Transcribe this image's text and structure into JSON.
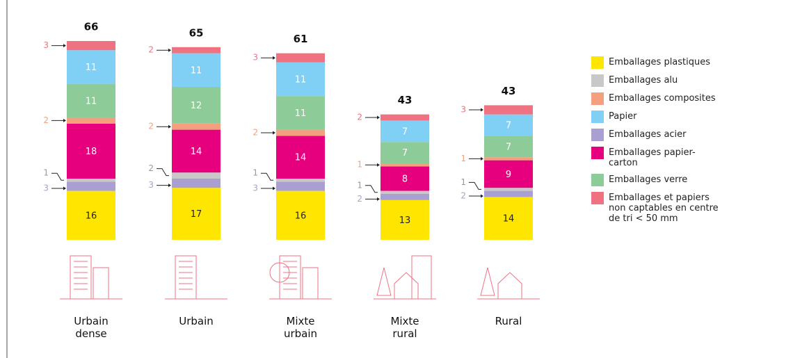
{
  "chart_data": {
    "type": "stacked-bar",
    "categories": [
      "Urbain dense",
      "Urbain",
      "Mixte urbain",
      "Mixte rural",
      "Rural"
    ],
    "totals": [
      66,
      65,
      61,
      43,
      43
    ],
    "ylim": [
      0,
      70
    ],
    "series": [
      {
        "name": "Emballages plastiques",
        "color": "#ffe600",
        "values": [
          16,
          17,
          16,
          13,
          14
        ]
      },
      {
        "name": "Emballages acier",
        "color": "#a99fd1",
        "values": [
          3,
          3,
          3,
          2,
          2
        ]
      },
      {
        "name": "Emballages alu",
        "color": "#c8c8c8",
        "values": [
          1,
          2,
          1,
          1,
          1
        ]
      },
      {
        "name": "Emballages papier-carton",
        "color": "#e6007e",
        "values": [
          18,
          14,
          14,
          8,
          9
        ]
      },
      {
        "name": "Emballages composites",
        "color": "#f4a07e",
        "values": [
          2,
          2,
          2,
          1,
          1
        ]
      },
      {
        "name": "Emballages verre",
        "color": "#8dcb98",
        "values": [
          11,
          12,
          11,
          7,
          7
        ]
      },
      {
        "name": "Papier",
        "color": "#80cff5",
        "values": [
          11,
          11,
          11,
          7,
          7
        ]
      },
      {
        "name": "Emballages et papiers non captables en centre de tri < 50 mm",
        "color": "#ef7283",
        "values": [
          3,
          2,
          3,
          2,
          3
        ]
      }
    ],
    "legend_order": [
      0,
      2,
      4,
      6,
      1,
      3,
      5,
      7
    ]
  }
}
